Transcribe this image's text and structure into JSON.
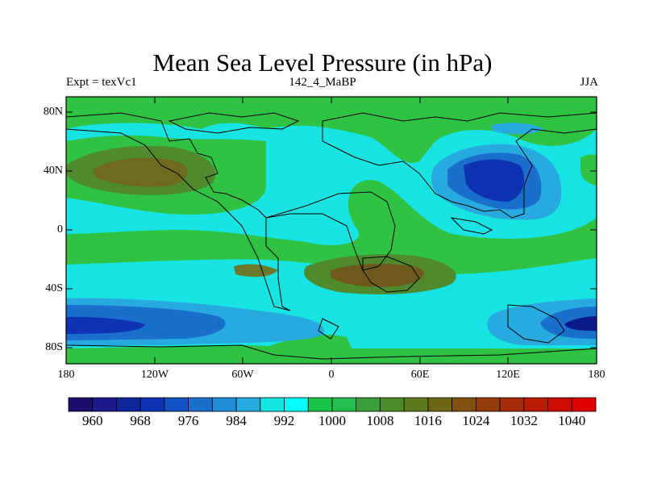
{
  "title": "Mean Sea Level Pressure (in hPa)",
  "left_string": "Expt = texVc1",
  "center_string": "142_4_MaBP",
  "right_string": "JJA",
  "lat_labels": [
    "80N",
    "40N",
    "0",
    "40S",
    "80S"
  ],
  "lon_labels": [
    "180",
    "120W",
    "60W",
    "0",
    "60E",
    "120E",
    "180"
  ],
  "colorbar": {
    "labels": [
      "960",
      "968",
      "976",
      "984",
      "992",
      "1000",
      "1008",
      "1016",
      "1024",
      "1032",
      "1040"
    ],
    "colors": [
      "#1a0d6b",
      "#1a1a8c",
      "#0d269e",
      "#0d33b3",
      "#1252c2",
      "#1a6ecc",
      "#1f8cd6",
      "#26aae0",
      "#14e6e0",
      "#00ffff",
      "#1ac447",
      "#26bf4f",
      "#3a9e3a",
      "#4d8c26",
      "#5e7a1f",
      "#6e6614",
      "#80520d",
      "#943d0a",
      "#a62b08",
      "#b81a05",
      "#cc0d05",
      "#e00000"
    ]
  },
  "levels": {
    "green": "#2fc243",
    "cyan": "#17e3e3",
    "light_blue": "#26aae0",
    "blue": "#1a6ecc",
    "dark_blue": "#0d33b3",
    "navy": "#0a1a8a",
    "olive": "#6b7a2a",
    "brown": "#6e5a1a"
  }
}
